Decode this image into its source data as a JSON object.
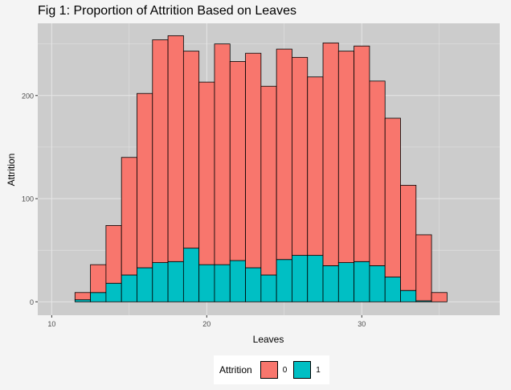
{
  "chart_data": {
    "type": "bar",
    "title": "Fig 1: Proportion of Attrition Based on Leaves",
    "xlabel": "Leaves",
    "ylabel": "Attrition",
    "x_ticks": [
      10,
      20,
      30
    ],
    "y_ticks": [
      0,
      100,
      200
    ],
    "xlim": [
      9.1,
      38.9
    ],
    "ylim": [
      -13,
      270
    ],
    "bin_width": 1,
    "grid": true,
    "legend": {
      "title": "Attrition",
      "position": "bottom"
    },
    "colors": {
      "0": "#F8766D",
      "1": "#00BFC4",
      "panel": "#cccccc",
      "grid": "#e6e6e6"
    },
    "bin_centers": [
      10,
      11,
      12,
      13,
      14,
      15,
      16,
      17,
      18,
      19,
      20,
      21,
      22,
      23,
      24,
      25,
      26,
      27,
      28,
      29,
      30,
      31,
      32,
      33,
      34,
      35,
      36,
      37,
      38
    ],
    "series": [
      {
        "name": "0",
        "values": [
          0,
          0,
          7,
          27,
          56,
          114,
          169,
          216,
          219,
          191,
          177,
          214,
          193,
          208,
          183,
          204,
          192,
          173,
          216,
          205,
          209,
          179,
          154,
          102,
          64,
          9,
          0,
          0,
          0
        ]
      },
      {
        "name": "1",
        "values": [
          0,
          0,
          2,
          9,
          18,
          26,
          33,
          38,
          39,
          52,
          36,
          36,
          40,
          33,
          26,
          41,
          45,
          45,
          35,
          38,
          39,
          35,
          24,
          11,
          1,
          0,
          0,
          0,
          0
        ]
      }
    ]
  }
}
